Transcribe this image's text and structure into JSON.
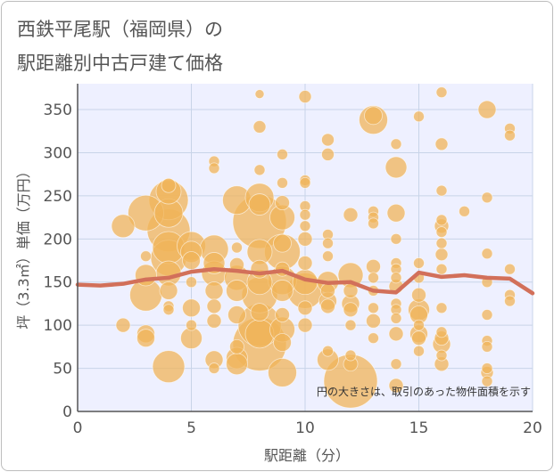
{
  "chart_data": {
    "type": "scatter",
    "title_lines": [
      "西鉄平尾駅（福岡県）の",
      "駅距離別中古戸建て価格"
    ],
    "xlabel": "駅距離（分）",
    "ylabel": "坪（3.3㎡）単価（万円）",
    "xlim": [
      0,
      20
    ],
    "ylim": [
      0,
      380
    ],
    "xticks": [
      0,
      5,
      10,
      15,
      20
    ],
    "yticks": [
      0,
      50,
      100,
      150,
      200,
      250,
      300,
      350
    ],
    "grid": true,
    "note": "円の大きさは、取引のあった物件面積を示す",
    "colors": {
      "bubble": "#F0B45A",
      "line": "#D2705A",
      "plot_bg": "#EEF0FF",
      "grid": "#C8D4E8"
    },
    "bubbles": [
      [
        2,
        215,
        13
      ],
      [
        2,
        100,
        8
      ],
      [
        3,
        230,
        20
      ],
      [
        3,
        180,
        6
      ],
      [
        3,
        158,
        12
      ],
      [
        3,
        135,
        18
      ],
      [
        3,
        90,
        10
      ],
      [
        3,
        85,
        10
      ],
      [
        4,
        262,
        8
      ],
      [
        4,
        255,
        14
      ],
      [
        4,
        245,
        22
      ],
      [
        4,
        230,
        16
      ],
      [
        4,
        210,
        24
      ],
      [
        4,
        190,
        18
      ],
      [
        4,
        178,
        20
      ],
      [
        4,
        160,
        14
      ],
      [
        4,
        140,
        10
      ],
      [
        4,
        122,
        6
      ],
      [
        4,
        118,
        6
      ],
      [
        4,
        52,
        18
      ],
      [
        5,
        192,
        16
      ],
      [
        5,
        185,
        12
      ],
      [
        5,
        175,
        10
      ],
      [
        5,
        150,
        6
      ],
      [
        5,
        120,
        10
      ],
      [
        5,
        100,
        6
      ],
      [
        5,
        85,
        12
      ],
      [
        6,
        290,
        6
      ],
      [
        6,
        282,
        6
      ],
      [
        6,
        188,
        16
      ],
      [
        6,
        172,
        12
      ],
      [
        6,
        160,
        14
      ],
      [
        6,
        140,
        10
      ],
      [
        6,
        122,
        8
      ],
      [
        6,
        105,
        8
      ],
      [
        6,
        60,
        10
      ],
      [
        6,
        50,
        6
      ],
      [
        7,
        245,
        16
      ],
      [
        7,
        190,
        6
      ],
      [
        7,
        170,
        8
      ],
      [
        7,
        155,
        14
      ],
      [
        7,
        140,
        12
      ],
      [
        7,
        112,
        10
      ],
      [
        7,
        75,
        8
      ],
      [
        7,
        62,
        12
      ],
      [
        7,
        55,
        12
      ],
      [
        8,
        368,
        5
      ],
      [
        8,
        330,
        7
      ],
      [
        8,
        280,
        6
      ],
      [
        8,
        248,
        16
      ],
      [
        8,
        240,
        12
      ],
      [
        8,
        220,
        30
      ],
      [
        8,
        185,
        14
      ],
      [
        8,
        165,
        10
      ],
      [
        8,
        150,
        14
      ],
      [
        8,
        135,
        20
      ],
      [
        8,
        115,
        10
      ],
      [
        8,
        100,
        24
      ],
      [
        8,
        90,
        16
      ],
      [
        8,
        78,
        30
      ],
      [
        9,
        298,
        6
      ],
      [
        9,
        265,
        6
      ],
      [
        9,
        242,
        8
      ],
      [
        9,
        225,
        14
      ],
      [
        9,
        195,
        10
      ],
      [
        9,
        185,
        20
      ],
      [
        9,
        165,
        8
      ],
      [
        9,
        152,
        16
      ],
      [
        9,
        140,
        12
      ],
      [
        9,
        112,
        8
      ],
      [
        9,
        95,
        14
      ],
      [
        9,
        80,
        10
      ],
      [
        9,
        45,
        16
      ],
      [
        10,
        365,
        7
      ],
      [
        10,
        268,
        6
      ],
      [
        10,
        265,
        6
      ],
      [
        10,
        238,
        6
      ],
      [
        10,
        228,
        6
      ],
      [
        10,
        215,
        6
      ],
      [
        10,
        200,
        8
      ],
      [
        10,
        172,
        8
      ],
      [
        10,
        150,
        14
      ],
      [
        10,
        140,
        20
      ],
      [
        10,
        120,
        8
      ],
      [
        10,
        100,
        8
      ],
      [
        11,
        315,
        7
      ],
      [
        11,
        298,
        7
      ],
      [
        11,
        205,
        6
      ],
      [
        11,
        195,
        6
      ],
      [
        11,
        180,
        6
      ],
      [
        11,
        150,
        12
      ],
      [
        11,
        140,
        8
      ],
      [
        11,
        128,
        10
      ],
      [
        11,
        122,
        8
      ],
      [
        11,
        70,
        6
      ],
      [
        11,
        60,
        12
      ],
      [
        12,
        228,
        8
      ],
      [
        12,
        158,
        14
      ],
      [
        12,
        140,
        8
      ],
      [
        12,
        125,
        10
      ],
      [
        12,
        118,
        8
      ],
      [
        12,
        100,
        6
      ],
      [
        12,
        65,
        6
      ],
      [
        12,
        55,
        8
      ],
      [
        12,
        35,
        30
      ],
      [
        13,
        343,
        10
      ],
      [
        13,
        338,
        16
      ],
      [
        13,
        232,
        6
      ],
      [
        13,
        225,
        6
      ],
      [
        13,
        218,
        6
      ],
      [
        13,
        168,
        8
      ],
      [
        13,
        155,
        6
      ],
      [
        13,
        140,
        6
      ],
      [
        13,
        120,
        6
      ],
      [
        13,
        105,
        8
      ],
      [
        13,
        85,
        6
      ],
      [
        14,
        310,
        6
      ],
      [
        14,
        283,
        12
      ],
      [
        14,
        230,
        10
      ],
      [
        14,
        200,
        6
      ],
      [
        14,
        172,
        6
      ],
      [
        14,
        165,
        6
      ],
      [
        14,
        155,
        6
      ],
      [
        14,
        145,
        8
      ],
      [
        14,
        125,
        6
      ],
      [
        14,
        118,
        6
      ],
      [
        14,
        108,
        6
      ],
      [
        14,
        90,
        8
      ],
      [
        14,
        55,
        6
      ],
      [
        14,
        30,
        8
      ],
      [
        15,
        342,
        6
      ],
      [
        15,
        172,
        6
      ],
      [
        15,
        155,
        6
      ],
      [
        15,
        135,
        8
      ],
      [
        15,
        118,
        12
      ],
      [
        15,
        112,
        10
      ],
      [
        15,
        100,
        6
      ],
      [
        15,
        90,
        10
      ],
      [
        15,
        85,
        8
      ],
      [
        15,
        70,
        6
      ],
      [
        16,
        370,
        6
      ],
      [
        16,
        310,
        7
      ],
      [
        16,
        256,
        6
      ],
      [
        16,
        222,
        6
      ],
      [
        16,
        215,
        8
      ],
      [
        16,
        208,
        6
      ],
      [
        16,
        195,
        6
      ],
      [
        16,
        182,
        7
      ],
      [
        16,
        165,
        6
      ],
      [
        16,
        120,
        6
      ],
      [
        16,
        92,
        6
      ],
      [
        16,
        85,
        8
      ],
      [
        16,
        78,
        10
      ],
      [
        16,
        65,
        6
      ],
      [
        16,
        55,
        8
      ],
      [
        17,
        232,
        6
      ],
      [
        18,
        350,
        10
      ],
      [
        18,
        248,
        6
      ],
      [
        18,
        183,
        6
      ],
      [
        18,
        150,
        6
      ],
      [
        18,
        112,
        6
      ],
      [
        18,
        82,
        6
      ],
      [
        18,
        75,
        6
      ],
      [
        18,
        50,
        6
      ],
      [
        18,
        45,
        7
      ],
      [
        18,
        35,
        6
      ],
      [
        19,
        328,
        6
      ],
      [
        19,
        320,
        6
      ],
      [
        19,
        165,
        6
      ],
      [
        19,
        135,
        6
      ],
      [
        19,
        128,
        6
      ]
    ],
    "line": {
      "x": [
        0,
        1,
        2,
        3,
        4,
        5,
        6,
        7,
        8,
        9,
        10,
        11,
        12,
        13,
        14,
        15,
        16,
        17,
        18,
        19,
        20
      ],
      "y": [
        147,
        146,
        148,
        153,
        155,
        162,
        165,
        163,
        160,
        163,
        153,
        149,
        150,
        140,
        138,
        161,
        156,
        158,
        155,
        154,
        137
      ]
    }
  }
}
